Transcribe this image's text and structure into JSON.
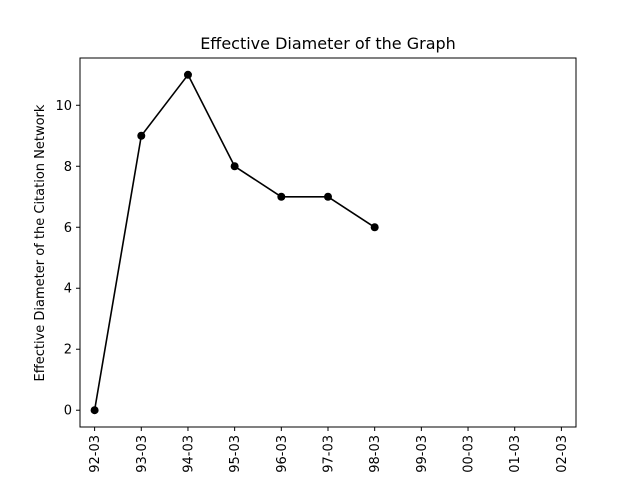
{
  "chart_data": {
    "type": "line",
    "title": "Effective Diameter of the Graph",
    "xlabel": "",
    "ylabel": "Effective Diameter of the Citation Network",
    "categories": [
      "92-03",
      "93-03",
      "94-03",
      "95-03",
      "96-03",
      "97-03",
      "98-03",
      "99-03",
      "00-03",
      "01-03",
      "02-03"
    ],
    "series": [
      {
        "values": [
          0,
          9,
          11,
          8,
          7,
          7,
          6,
          null,
          null,
          null,
          null
        ],
        "color": "#000000",
        "marker": "circle"
      }
    ],
    "yticks": [
      0,
      2,
      4,
      6,
      8,
      10
    ],
    "ylim": [
      -0.55,
      11.55
    ],
    "grid": false
  }
}
